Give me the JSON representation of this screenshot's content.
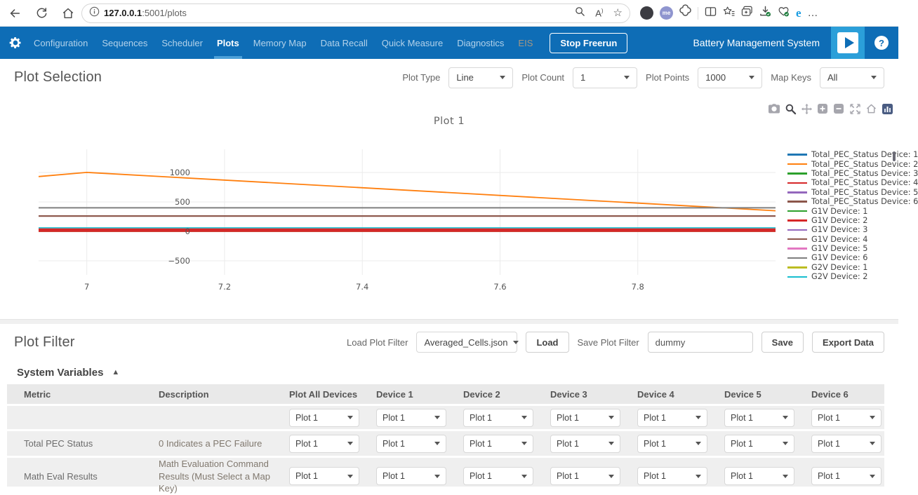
{
  "browser": {
    "url_main": "127.0.0.1",
    "url_rest": ":5001/plots",
    "profile_badge": "me"
  },
  "icons": {
    "star": "☆",
    "more": "…",
    "collapse": "▲",
    "help": "?",
    "info": "i",
    "read_aloud": "A",
    "edge": "e"
  },
  "nav": {
    "items": [
      {
        "label": "Configuration",
        "state": "normal"
      },
      {
        "label": "Sequences",
        "state": "normal"
      },
      {
        "label": "Scheduler",
        "state": "normal"
      },
      {
        "label": "Plots",
        "state": "active"
      },
      {
        "label": "Memory Map",
        "state": "normal"
      },
      {
        "label": "Data Recall",
        "state": "normal"
      },
      {
        "label": "Quick Measure",
        "state": "normal"
      },
      {
        "label": "Diagnostics",
        "state": "normal"
      },
      {
        "label": "EIS",
        "state": "disabled"
      }
    ],
    "stop_button": "Stop Freerun",
    "app_title": "Battery Management System"
  },
  "plot_selection": {
    "title": "Plot Selection",
    "plot_type_label": "Plot Type",
    "plot_type_value": "Line",
    "plot_count_label": "Plot Count",
    "plot_count_value": "1",
    "plot_points_label": "Plot Points",
    "plot_points_value": "1000",
    "map_keys_label": "Map Keys",
    "map_keys_value": "All"
  },
  "chart_data": {
    "type": "line",
    "title": "Plot 1",
    "xlabel": "",
    "ylabel": "",
    "xlim": [
      6.93,
      8.0
    ],
    "ylim": [
      -738,
      1392
    ],
    "xticks": [
      7,
      7.2,
      7.4,
      7.6,
      7.8
    ],
    "yticks": [
      1000,
      500,
      0,
      -500
    ],
    "grid": true,
    "legend_position": "right",
    "series": [
      {
        "name": "Total_PEC_Status Device: 1",
        "color": "#1f77b4",
        "width": 1.6,
        "points": [
          [
            6.93,
            0
          ],
          [
            8.0,
            0
          ]
        ]
      },
      {
        "name": "Total_PEC_Status Device: 2",
        "color": "#ff7f0e",
        "width": 1.8,
        "points": [
          [
            6.93,
            930
          ],
          [
            7.0,
            1000
          ],
          [
            8.0,
            350
          ]
        ]
      },
      {
        "name": "Total_PEC_Status Device: 3",
        "color": "#2ca02c",
        "width": 1.6,
        "points": [
          [
            6.93,
            0
          ],
          [
            8.0,
            0
          ]
        ]
      },
      {
        "name": "Total_PEC_Status Device: 4",
        "color": "#d62728",
        "width": 5,
        "points": [
          [
            6.93,
            20
          ],
          [
            8.0,
            20
          ]
        ]
      },
      {
        "name": "Total_PEC_Status Device: 5",
        "color": "#9467bd",
        "width": 1.6,
        "points": [
          [
            6.93,
            0
          ],
          [
            8.0,
            0
          ]
        ]
      },
      {
        "name": "Total_PEC_Status Device: 6",
        "color": "#8c564b",
        "width": 2,
        "points": [
          [
            6.93,
            260
          ],
          [
            8.0,
            260
          ]
        ]
      },
      {
        "name": "G1V Device: 1",
        "color": "#2ca02c",
        "width": 1.6,
        "points": [
          [
            6.93,
            0
          ],
          [
            8.0,
            0
          ]
        ]
      },
      {
        "name": "G1V Device: 2",
        "color": "#d62728",
        "width": 1.6,
        "points": [
          [
            6.93,
            20
          ],
          [
            8.0,
            20
          ]
        ]
      },
      {
        "name": "G1V Device: 3",
        "color": "#9467bd",
        "width": 1.6,
        "points": [
          [
            6.93,
            0
          ],
          [
            8.0,
            0
          ]
        ]
      },
      {
        "name": "G1V Device: 4",
        "color": "#8c564b",
        "width": 2,
        "points": [
          [
            6.93,
            260
          ],
          [
            8.0,
            260
          ]
        ]
      },
      {
        "name": "G1V Device: 5",
        "color": "#e377c2",
        "width": 1.6,
        "points": [
          [
            6.93,
            0
          ],
          [
            8.0,
            0
          ]
        ]
      },
      {
        "name": "G1V Device: 6",
        "color": "#7f7f7f",
        "width": 2,
        "points": [
          [
            6.93,
            400
          ],
          [
            8.0,
            400
          ]
        ]
      },
      {
        "name": "G2V Device: 1",
        "color": "#bcbd22",
        "width": 1.6,
        "points": [
          [
            6.93,
            0
          ],
          [
            8.0,
            0
          ]
        ]
      },
      {
        "name": "G2V Device: 2",
        "color": "#17becf",
        "width": 1.6,
        "points": [
          [
            6.93,
            60
          ],
          [
            8.0,
            60
          ]
        ]
      }
    ]
  },
  "plot_filter": {
    "title": "Plot Filter",
    "load_label": "Load Plot Filter",
    "load_value": "Averaged_Cells.json",
    "load_button": "Load",
    "save_label": "Save Plot Filter",
    "save_value": "dummy",
    "save_button": "Save",
    "export_button": "Export Data"
  },
  "system_variables": {
    "title": "System Variables",
    "columns": [
      "Metric",
      "Description",
      "Plot All Devices",
      "Device 1",
      "Device 2",
      "Device 3",
      "Device 4",
      "Device 5",
      "Device 6"
    ],
    "dropdown_value": "Plot 1",
    "rows": [
      {
        "metric": "",
        "description": ""
      },
      {
        "metric": "Total PEC Status",
        "description": "0 Indicates a PEC Failure"
      },
      {
        "metric": "Math Eval Results",
        "description": "Math Evaluation Command Results (Must Select a Map Key)"
      }
    ]
  },
  "colors": {
    "nav_blue": "#0e6db6",
    "accent_blue": "#2b9fd9",
    "underline_blue": "#4da0d8"
  }
}
